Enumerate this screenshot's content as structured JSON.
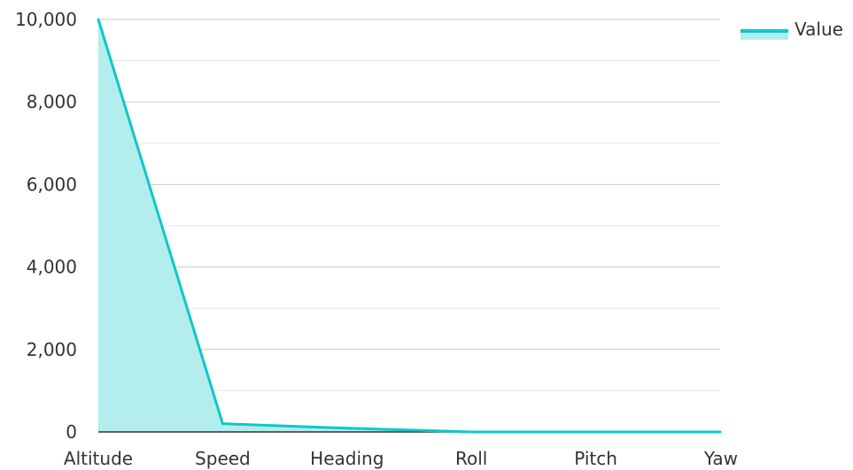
{
  "chart_data": {
    "type": "area",
    "categories": [
      "Altitude",
      "Speed",
      "Heading",
      "Roll",
      "Pitch",
      "Yaw"
    ],
    "series": [
      {
        "name": "Value",
        "values": [
          10000,
          200,
          90,
          0,
          0,
          0
        ]
      }
    ],
    "ylim": [
      0,
      10000
    ],
    "yticks": [
      0,
      2000,
      4000,
      6000,
      8000,
      10000
    ],
    "ytick_labels": [
      "0",
      "2,000",
      "4,000",
      "6,000",
      "8,000",
      "10,000"
    ],
    "grid": true,
    "legend": {
      "position": "top-right",
      "label": "Value"
    },
    "colors": {
      "line": "#0ec8c8",
      "fill": "#b3eded",
      "grid": "#c8c8c8",
      "axis": "#333333"
    }
  }
}
